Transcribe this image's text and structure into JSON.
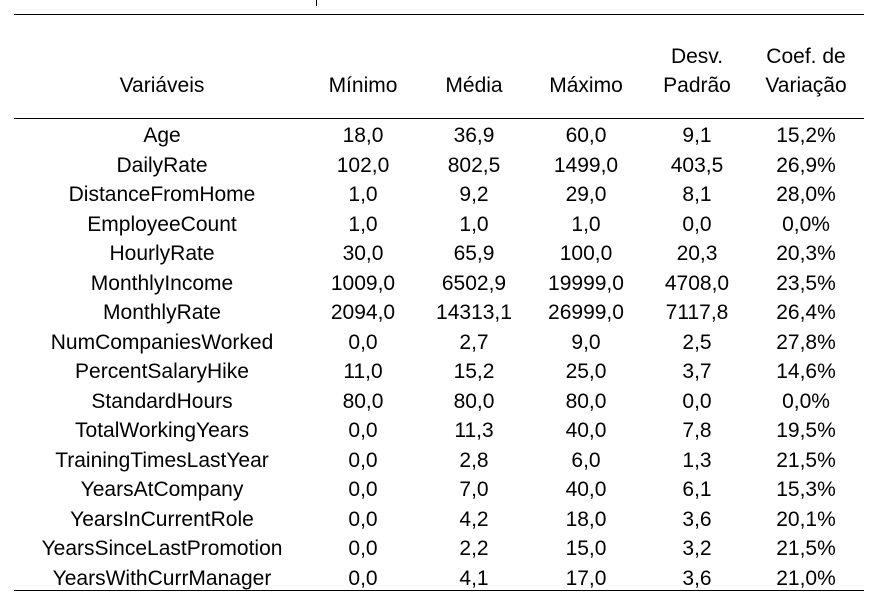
{
  "table": {
    "headers": [
      [
        "Variáveis"
      ],
      [
        "Mínimo"
      ],
      [
        "Média"
      ],
      [
        "Máximo"
      ],
      [
        "Desv.",
        "Padrão"
      ],
      [
        "Coef. de",
        "Variação"
      ]
    ],
    "rows": [
      [
        "Age",
        "18,0",
        "36,9",
        "60,0",
        "9,1",
        "15,2%"
      ],
      [
        "DailyRate",
        "102,0",
        "802,5",
        "1499,0",
        "403,5",
        "26,9%"
      ],
      [
        "DistanceFromHome",
        "1,0",
        "9,2",
        "29,0",
        "8,1",
        "28,0%"
      ],
      [
        "EmployeeCount",
        "1,0",
        "1,0",
        "1,0",
        "0,0",
        "0,0%"
      ],
      [
        "HourlyRate",
        "30,0",
        "65,9",
        "100,0",
        "20,3",
        "20,3%"
      ],
      [
        "MonthlyIncome",
        "1009,0",
        "6502,9",
        "19999,0",
        "4708,0",
        "23,5%"
      ],
      [
        "MonthlyRate",
        "2094,0",
        "14313,1",
        "26999,0",
        "7117,8",
        "26,4%"
      ],
      [
        "NumCompaniesWorked",
        "0,0",
        "2,7",
        "9,0",
        "2,5",
        "27,8%"
      ],
      [
        "PercentSalaryHike",
        "11,0",
        "15,2",
        "25,0",
        "3,7",
        "14,6%"
      ],
      [
        "StandardHours",
        "80,0",
        "80,0",
        "80,0",
        "0,0",
        "0,0%"
      ],
      [
        "TotalWorkingYears",
        "0,0",
        "11,3",
        "40,0",
        "7,8",
        "19,5%"
      ],
      [
        "TrainingTimesLastYear",
        "0,0",
        "2,8",
        "6,0",
        "1,3",
        "21,5%"
      ],
      [
        "YearsAtCompany",
        "0,0",
        "7,0",
        "40,0",
        "6,1",
        "15,3%"
      ],
      [
        "YearsInCurrentRole",
        "0,0",
        "4,2",
        "18,0",
        "3,6",
        "20,1%"
      ],
      [
        "YearsSinceLastPromotion",
        "0,0",
        "2,2",
        "15,0",
        "3,2",
        "21,5%"
      ],
      [
        "YearsWithCurrManager",
        "0,0",
        "4,1",
        "17,0",
        "3,6",
        "21,0%"
      ]
    ]
  }
}
